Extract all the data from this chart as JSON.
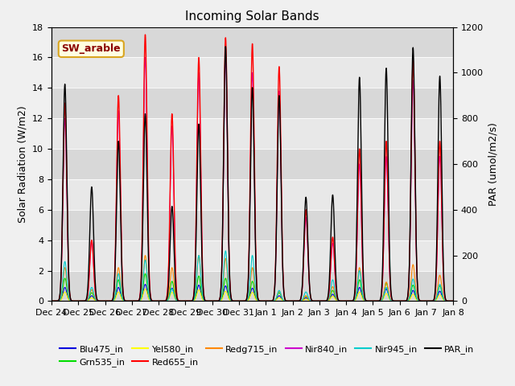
{
  "title": "Incoming Solar Bands",
  "ylabel_left": "Solar Radiation (W/m2)",
  "ylabel_right": "PAR (umol/m2/s)",
  "annotation": "SW_arable",
  "ylim_left": [
    0,
    18
  ],
  "ylim_right": [
    0,
    1200
  ],
  "yticks_left": [
    0,
    2,
    4,
    6,
    8,
    10,
    12,
    14,
    16,
    18
  ],
  "yticks_right": [
    0,
    200,
    400,
    600,
    800,
    1000,
    1200
  ],
  "figsize": [
    6.4,
    4.8
  ],
  "dpi": 100,
  "series_colors": {
    "Blu475_in": "#0000dd",
    "Grn535_in": "#00dd00",
    "Yel580_in": "#ffff00",
    "Red655_in": "#ff0000",
    "Redg715_in": "#ff8800",
    "Nir840_in": "#cc00cc",
    "Nir945_in": "#00cccc",
    "PAR_in": "#000000"
  },
  "xtick_labels": [
    "Dec 24",
    "Dec 25",
    "Dec 26",
    "Dec 27",
    "Dec 28",
    "Dec 29",
    "Dec 30",
    "Dec 31",
    "Jan 1",
    "Jan 2",
    "Jan 3",
    "Jan 4",
    "Jan 5",
    "Jan 6",
    "Jan 7",
    "Jan 8"
  ],
  "num_days": 15,
  "sigma": 0.07,
  "day_peaks": {
    "Blu475": [
      0.9,
      0.35,
      0.9,
      1.1,
      0.85,
      1.05,
      1.0,
      0.85,
      0.35,
      0.22,
      0.45,
      0.9,
      0.8,
      0.7,
      0.65
    ],
    "Grn535": [
      1.5,
      0.55,
      1.4,
      1.8,
      1.3,
      1.65,
      1.5,
      1.3,
      0.55,
      0.32,
      0.7,
      1.4,
      1.2,
      1.05,
      1.0
    ],
    "Yel580": [
      0.6,
      0.22,
      0.6,
      0.8,
      0.58,
      0.75,
      0.65,
      0.58,
      0.22,
      0.12,
      0.32,
      0.6,
      0.5,
      0.45,
      0.42
    ],
    "Red655": [
      13.0,
      4.0,
      13.5,
      17.5,
      12.3,
      16.0,
      17.3,
      16.9,
      15.4,
      6.0,
      4.2,
      10.0,
      10.5,
      15.8,
      10.5
    ],
    "Redg715": [
      2.2,
      0.75,
      2.2,
      3.0,
      2.2,
      3.0,
      2.8,
      2.2,
      0.65,
      0.35,
      0.95,
      2.2,
      1.25,
      2.4,
      1.7
    ],
    "Nir840": [
      12.0,
      4.0,
      12.5,
      16.0,
      11.5,
      15.0,
      16.0,
      15.0,
      13.8,
      5.5,
      3.8,
      9.0,
      9.5,
      14.5,
      9.5
    ],
    "Nir945": [
      2.6,
      0.9,
      1.8,
      2.7,
      0.8,
      3.0,
      3.3,
      3.0,
      0.7,
      0.6,
      1.4,
      2.0,
      0.9,
      1.45,
      1.1
    ],
    "PAR": [
      950,
      500,
      700,
      820,
      415,
      775,
      1115,
      935,
      900,
      455,
      465,
      980,
      1020,
      1110,
      985
    ]
  },
  "hband_color1": "#e8e8e8",
  "hband_color2": "#d8d8d8",
  "legend_order": [
    "Blu475_in",
    "Grn535_in",
    "Yel580_in",
    "Red655_in",
    "Redg715_in",
    "Nir840_in",
    "Nir945_in",
    "PAR_in"
  ]
}
